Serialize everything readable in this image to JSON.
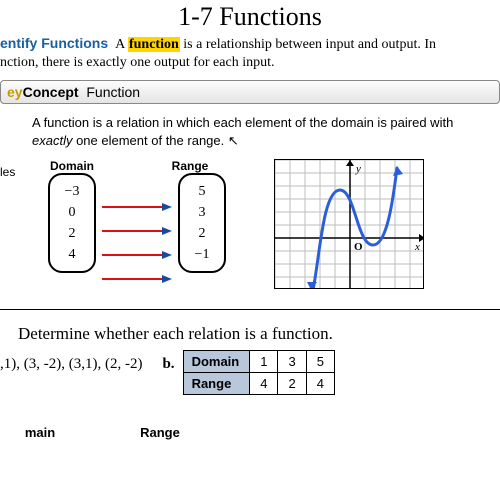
{
  "title": "1-7 Functions",
  "intro": {
    "sectionLabel": "entify Functions",
    "before": "A ",
    "highlight": "function",
    "after1": " is a relationship between input and output. In",
    "line2": "nction, there is exactly one output for each input."
  },
  "keybar": {
    "key": "ey",
    "concept": "Concept",
    "name": "Function"
  },
  "definition": {
    "l1": "A function is a relation in which each element of the domain is paired with",
    "l2a": "exactly",
    "l2b": " one element of the range."
  },
  "leftSide": "les",
  "mapping": {
    "domainLabel": "Domain",
    "rangeLabel": "Range",
    "domain": [
      "−3",
      "0",
      "2",
      "4"
    ],
    "range": [
      "5",
      "3",
      "2",
      "−1"
    ],
    "arrowColor": "#d11",
    "arrowHeadColor": "#1a4aa0"
  },
  "graph": {
    "grid": "#bdbdbd",
    "axis": "#000",
    "curve": "#2b5fd9",
    "xLabel": "x",
    "yLabel": "y",
    "origin": "O"
  },
  "question": "Determine whether each relation is a function.",
  "partA": ",1), (3, -2), (3,1), (2, -2)",
  "partB": {
    "label": "b.",
    "head1": "Domain",
    "head2": "Range",
    "domain": [
      "1",
      "3",
      "5"
    ],
    "range": [
      "4",
      "2",
      "4"
    ]
  },
  "bottom": {
    "domain": "main",
    "range": "Range"
  }
}
